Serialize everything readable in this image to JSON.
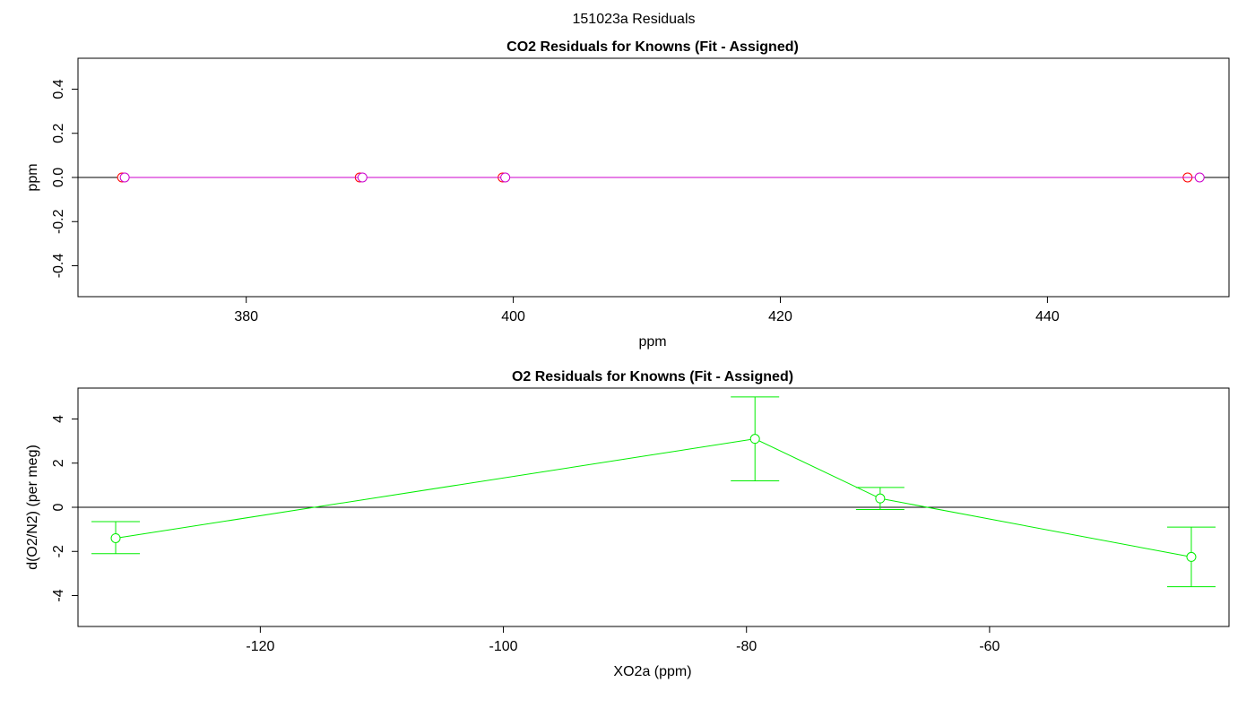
{
  "figure_title": "151023a  Residuals",
  "colors": {
    "co2_series_a": "#ff0000",
    "co2_series_b": "#cc00cc",
    "o2_series": "#00ee00",
    "zero_line": "#000000"
  },
  "chart_data": [
    {
      "type": "scatter",
      "title": "CO2 Residuals for Knowns (Fit - Assigned)",
      "xlabel": "ppm",
      "ylabel": "ppm",
      "xlim": [
        367.4,
        453.6
      ],
      "ylim": [
        -0.54,
        0.54
      ],
      "xticks": [
        380,
        400,
        420,
        440
      ],
      "yticks": [
        -0.4,
        -0.2,
        0.0,
        0.2,
        0.4
      ],
      "ytick_labels": [
        "-0.4",
        "-0.2",
        "0.0",
        "0.2",
        "0.4"
      ],
      "reference_line_y": 0,
      "series": [
        {
          "x": [
            370.7,
            388.5,
            399.2,
            450.5
          ],
          "y": [
            0,
            0,
            0,
            0
          ]
        },
        {
          "x": [
            370.9,
            388.7,
            399.4,
            451.4
          ],
          "y": [
            0,
            0,
            0,
            0
          ]
        }
      ]
    },
    {
      "type": "line",
      "title": "O2 Residuals for Knowns (Fit - Assigned)",
      "xlabel": "XO2a (ppm)",
      "ylabel": "d(O2/N2) (per meg)",
      "xlim": [
        -135.0,
        -40.3
      ],
      "ylim": [
        -5.4,
        5.4
      ],
      "xticks": [
        -120,
        -100,
        -80,
        -60
      ],
      "yticks": [
        -4,
        -2,
        0,
        2,
        4
      ],
      "reference_line_y": 0,
      "series": [
        {
          "x": [
            -131.9,
            -79.3,
            -69.0,
            -43.4
          ],
          "y": [
            -1.4,
            3.1,
            0.4,
            -2.25
          ],
          "error_low": [
            -2.1,
            1.2,
            -0.1,
            -3.6
          ],
          "error_high": [
            -0.65,
            5.0,
            0.9,
            -0.9
          ]
        }
      ]
    }
  ]
}
